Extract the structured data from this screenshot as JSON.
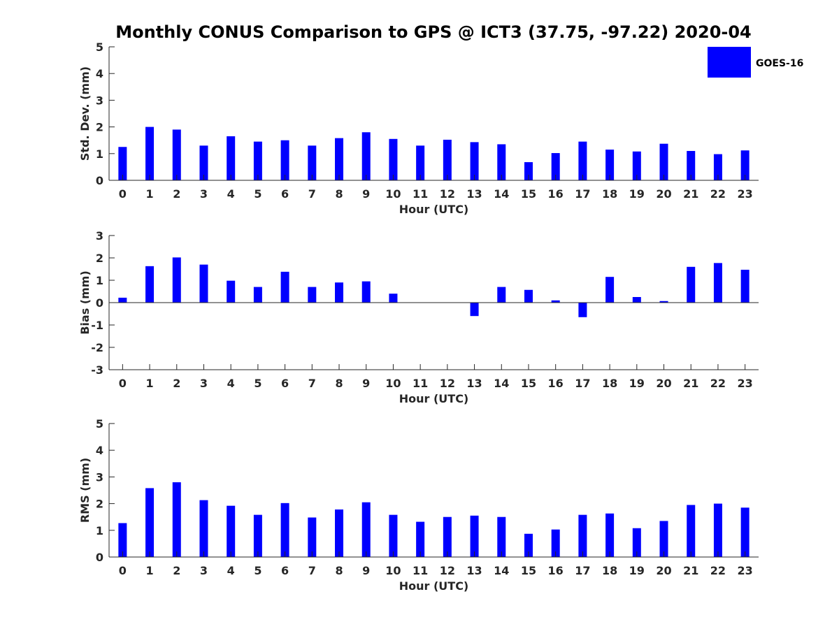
{
  "chart_data": {
    "type": "bar",
    "title": "Monthly CONUS Comparison to GPS @ ICT3 (37.75, -97.22) 2020-04",
    "legend": {
      "entries": [
        "GOES-16"
      ],
      "placement": "top-right"
    },
    "bar_color": "#0000ff",
    "categories": [
      "0",
      "1",
      "2",
      "3",
      "4",
      "5",
      "6",
      "7",
      "8",
      "9",
      "10",
      "11",
      "12",
      "13",
      "14",
      "15",
      "16",
      "17",
      "18",
      "19",
      "20",
      "21",
      "22",
      "23"
    ],
    "panels": [
      {
        "id": "std",
        "xlabel": "Hour (UTC)",
        "ylabel": "Std. Dev. (mm)",
        "ylim": [
          0,
          5
        ],
        "yticks": [
          "0",
          "1",
          "2",
          "3",
          "4",
          "5"
        ],
        "series": [
          {
            "name": "GOES-16",
            "values": [
              1.25,
              2.0,
              1.9,
              1.3,
              1.65,
              1.45,
              1.5,
              1.3,
              1.58,
              1.8,
              1.55,
              1.3,
              1.52,
              1.43,
              1.35,
              0.68,
              1.02,
              1.45,
              1.15,
              1.08,
              1.37,
              1.1,
              0.98,
              1.12
            ]
          }
        ]
      },
      {
        "id": "bias",
        "xlabel": "Hour (UTC)",
        "ylabel": "Bias (mm)",
        "ylim": [
          -3,
          3
        ],
        "yticks": [
          "-3",
          "-2",
          "-1",
          "0",
          "1",
          "2",
          "3"
        ],
        "series": [
          {
            "name": "GOES-16",
            "values": [
              0.22,
              1.63,
              2.02,
              1.7,
              0.98,
              0.7,
              1.38,
              0.7,
              0.9,
              0.95,
              0.4,
              0,
              0,
              -0.6,
              0.7,
              0.57,
              0.1,
              -0.65,
              1.15,
              0.25,
              0.07,
              1.6,
              1.77,
              1.47
            ]
          }
        ]
      },
      {
        "id": "rms",
        "xlabel": "Hour (UTC)",
        "ylabel": "RMS (mm)",
        "ylim": [
          0,
          5
        ],
        "yticks": [
          "0",
          "1",
          "2",
          "3",
          "4",
          "5"
        ],
        "series": [
          {
            "name": "GOES-16",
            "values": [
              1.27,
              2.58,
              2.8,
              2.13,
              1.92,
              1.58,
              2.02,
              1.48,
              1.78,
              2.05,
              1.58,
              1.32,
              1.5,
              1.55,
              1.5,
              0.87,
              1.03,
              1.58,
              1.63,
              1.08,
              1.35,
              1.95,
              2.0,
              1.85
            ]
          }
        ]
      }
    ]
  }
}
